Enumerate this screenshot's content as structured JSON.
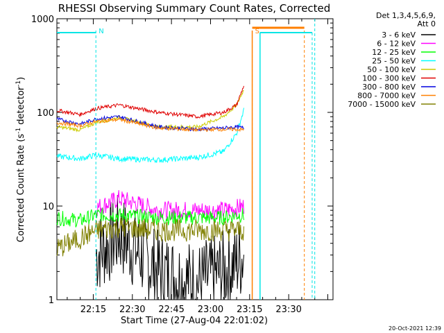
{
  "chart_data": {
    "type": "line",
    "title": "RHESSI Observing Summary Count Rates, Corrected",
    "xlabel": "Start Time (27-Aug-04 22:01:02)",
    "ylabel": "Corrected Count Rate (s⁻¹ detector⁻¹)",
    "ylabel_main": "Corrected Count Rate (s",
    "ylabel_sup1": "-1",
    "ylabel_mid": " detector",
    "ylabel_sup2": "-1",
    "ylabel_end": ")",
    "yscale": "log",
    "ylim": [
      1,
      1000
    ],
    "xlim_minutes": [
      22.033,
      23.783
    ],
    "x_ticks": [
      "22:15",
      "22:30",
      "22:45",
      "23:00",
      "23:15",
      "23:30"
    ],
    "y_ticks": [
      "1",
      "10",
      "100",
      "1000"
    ],
    "grid": false,
    "legend_placement": "right",
    "legend_header": [
      "Det 1,3,4,5,6,9,",
      "Att 0"
    ],
    "footer_date": "20-Oct-2021 12:39",
    "markers": [
      {
        "label": "N",
        "color": "#00e5e5",
        "x": "22:16"
      },
      {
        "label": "S",
        "color": "#ff7f00",
        "x": "23:16"
      }
    ],
    "series": [
      {
        "name": "3 - 6 keV",
        "color": "#000000"
      },
      {
        "name": "6 - 12 keV",
        "color": "#ff00ff"
      },
      {
        "name": "12 - 25 keV",
        "color": "#00ff00"
      },
      {
        "name": "25 - 50 keV",
        "color": "#00ffff"
      },
      {
        "name": "50 - 100 keV",
        "color": "#cccc00"
      },
      {
        "name": "100 - 300 keV",
        "color": "#e00000"
      },
      {
        "name": "300 - 800 keV",
        "color": "#0000e0"
      },
      {
        "name": "800 - 7000 keV",
        "color": "#ff8000"
      },
      {
        "name": "7000 - 15000 keV",
        "color": "#808000"
      }
    ],
    "data": {
      "t": [
        "22:01",
        "22:10",
        "22:16",
        "22:25",
        "22:40",
        "22:55",
        "23:05",
        "23:10",
        "23:13"
      ],
      "100 - 300 keV": [
        105,
        95,
        110,
        120,
        100,
        90,
        100,
        120,
        200
      ],
      "300 - 800 keV": [
        85,
        75,
        85,
        90,
        70,
        66,
        68,
        70,
        68
      ],
      "50 - 100 keV": [
        70,
        65,
        78,
        88,
        70,
        70,
        90,
        120,
        180
      ],
      "800 - 7000 keV": [
        78,
        72,
        80,
        84,
        68,
        65,
        66,
        66,
        65
      ],
      "25 - 50 keV": [
        34,
        32,
        35,
        32,
        31,
        33,
        38,
        60,
        110
      ],
      "6 - 12 keV": [
        null,
        null,
        9.5,
        12,
        9,
        9,
        9,
        9.5,
        10
      ],
      "12 - 25 keV": [
        7.5,
        7,
        8,
        8,
        7.5,
        7.5,
        7.5,
        8,
        8
      ],
      "7000 - 15000 keV": [
        3.5,
        4.5,
        5.5,
        6,
        5.5,
        5.5,
        5.5,
        5.5,
        5.5
      ],
      "3 - 6 keV": [
        null,
        null,
        3,
        5,
        2,
        1.5,
        2,
        2.5,
        3
      ]
    }
  }
}
